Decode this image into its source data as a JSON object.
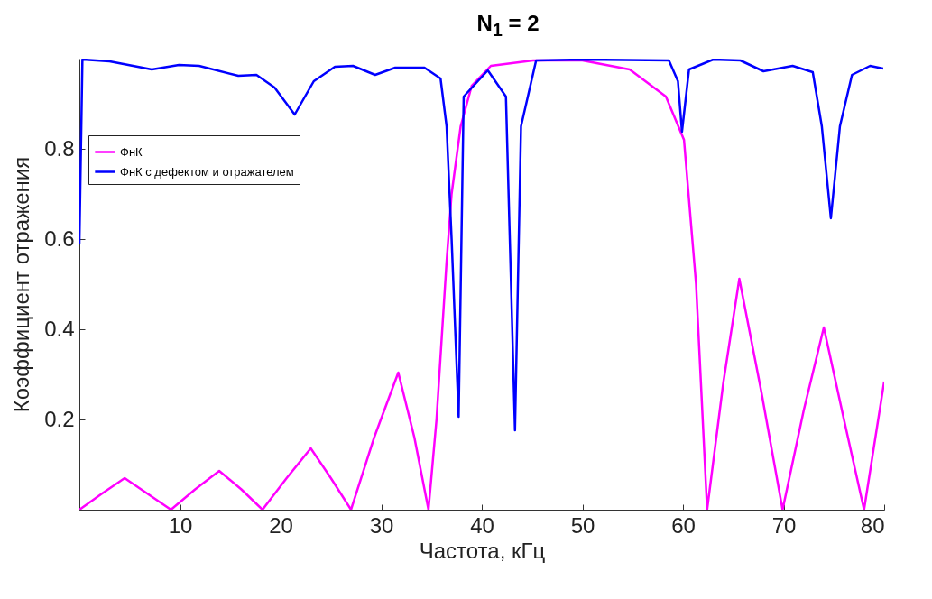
{
  "chart_data": {
    "type": "line",
    "title": "N$_{1}$ = 2",
    "xlabel": "Частота, кГц",
    "ylabel": "Коэффициент отражения",
    "xlim": [
      0,
      80
    ],
    "ylim": [
      0,
      1
    ],
    "xticks": [
      {
        "value": 0,
        "label": null
      },
      10,
      20,
      30,
      40,
      50,
      60,
      70,
      80
    ],
    "yticks": [
      {
        "value": 0,
        "label": null
      },
      0.2,
      0.4,
      0.6,
      0.8
    ],
    "grid": false,
    "legend": "top left",
    "series": [
      {
        "name": "ФнК",
        "color": "#ff00ff",
        "x": [
          0,
          2.2,
          4.5,
          6.8,
          9.1,
          11.5,
          13.9,
          16.1,
          18.2,
          20.6,
          23,
          25,
          27,
          29.3,
          31.7,
          33.3,
          34.7,
          35.5,
          36.5,
          37,
          37.9,
          39,
          40.9,
          45.1,
          50,
          54.7,
          58.3,
          60.1,
          61,
          61.3,
          62.4,
          64,
          65.6,
          67.8,
          69.9,
          72,
          74,
          76,
          78,
          80
        ],
        "values": [
          0,
          0.035,
          0.07,
          0.035,
          0,
          0.045,
          0.086,
          0.045,
          0,
          0.07,
          0.136,
          0.07,
          0,
          0.16,
          0.304,
          0.16,
          0,
          0.2,
          0.55,
          0.7,
          0.85,
          0.94,
          0.984,
          0.996,
          0.996,
          0.976,
          0.916,
          0.82,
          0.58,
          0.5,
          0,
          0.28,
          0.512,
          0.26,
          0,
          0.22,
          0.404,
          0.2,
          0,
          0.284
        ]
      },
      {
        "name": "ФнК с дефектом и отражателем",
        "color": "#0000ff",
        "x": [
          0,
          0.3,
          3,
          7.2,
          9.9,
          11.9,
          15.8,
          17.6,
          19.4,
          21.4,
          23.3,
          25.4,
          27.2,
          29.4,
          31.4,
          34.3,
          35.9,
          36.5,
          37,
          37.7,
          38.2,
          40.6,
          42.4,
          43.3,
          43.9,
          45.4,
          50,
          58.6,
          59.5,
          59.9,
          60.6,
          63,
          65.7,
          68,
          70.9,
          72.9,
          73.8,
          74.7,
          75.6,
          76.8,
          78.6,
          79.9
        ],
        "values": [
          0.59,
          0.998,
          0.994,
          0.976,
          0.986,
          0.984,
          0.962,
          0.964,
          0.936,
          0.876,
          0.95,
          0.982,
          0.984,
          0.964,
          0.98,
          0.98,
          0.956,
          0.85,
          0.6,
          0.206,
          0.916,
          0.974,
          0.916,
          0.176,
          0.85,
          0.996,
          0.998,
          0.996,
          0.95,
          0.838,
          0.976,
          0.998,
          0.996,
          0.972,
          0.984,
          0.97,
          0.85,
          0.646,
          0.85,
          0.964,
          0.984,
          0.978
        ]
      }
    ]
  }
}
